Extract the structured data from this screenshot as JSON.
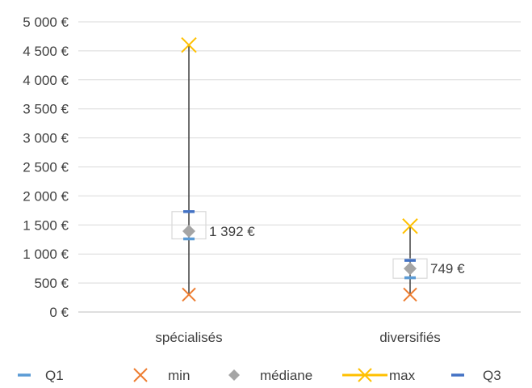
{
  "chart_data": {
    "type": "stock",
    "categories": [
      "spécialisés",
      "diversifiés"
    ],
    "series": [
      {
        "name": "Q1",
        "values": [
          1260,
          590
        ],
        "color": "#5b9bd5"
      },
      {
        "name": "min",
        "values": [
          300,
          300
        ],
        "color": "#ed7d31"
      },
      {
        "name": "médiane",
        "values": [
          1392,
          749
        ],
        "color": "#a5a5a5"
      },
      {
        "name": "max",
        "values": [
          4600,
          1480
        ],
        "color": "#ffc000"
      },
      {
        "name": "Q3",
        "values": [
          1730,
          890
        ],
        "color": "#4472c4"
      }
    ],
    "data_labels": [
      "1 392 €",
      "749 €"
    ],
    "yticks": [
      "0 €",
      "500 €",
      "1 000 €",
      "1 500 €",
      "2 000 €",
      "2 500 €",
      "3 000 €",
      "3 500 €",
      "4 000 €",
      "4 500 €",
      "5 000 €"
    ],
    "ylim": [
      0,
      5000
    ],
    "ystep": 500,
    "grid": true,
    "legend_position": "bottom",
    "colors": {
      "whisker": "#404040",
      "grid": "#d9d9d9",
      "box_border": "#d9d9d9"
    }
  }
}
